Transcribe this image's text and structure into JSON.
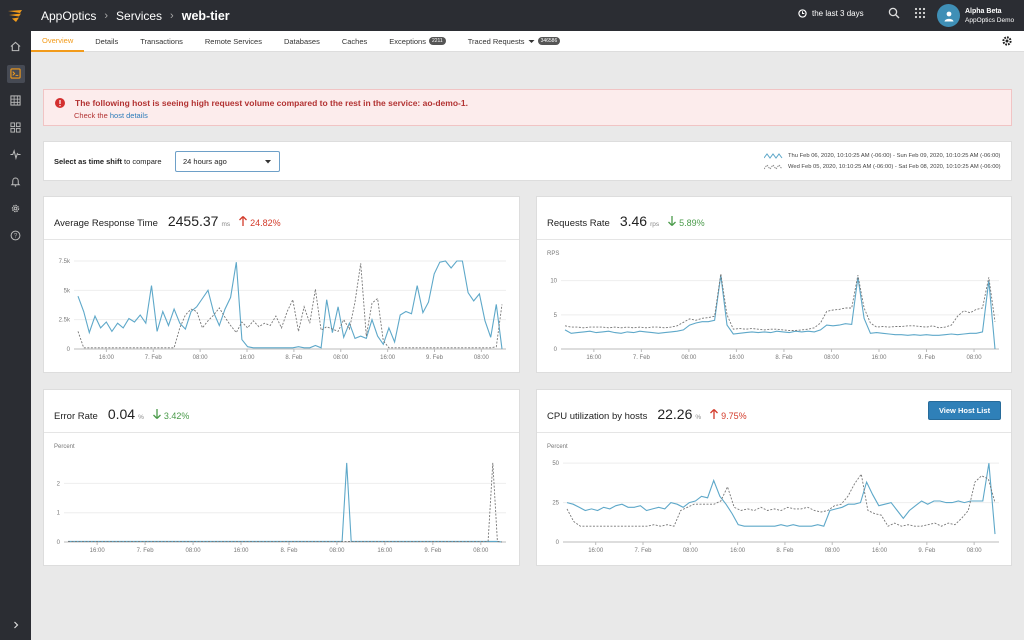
{
  "app": {
    "breadcrumb": [
      "AppOptics",
      "Services",
      "web-tier"
    ],
    "time_range": "the last 3 days",
    "user_name": "Alpha Beta",
    "org_name": "AppOptics Demo"
  },
  "tabs": [
    {
      "label": "Overview"
    },
    {
      "label": "Details"
    },
    {
      "label": "Transactions"
    },
    {
      "label": "Remote Services"
    },
    {
      "label": "Databases"
    },
    {
      "label": "Caches"
    },
    {
      "label": "Exceptions",
      "badge": "2211"
    },
    {
      "label": "Traced Requests",
      "badge": "346586"
    }
  ],
  "alert": {
    "title": "The following host is seeing high request volume compared to the rest in the service: ao-demo-1.",
    "sub_prefix": "Check the",
    "sub_link": "host details"
  },
  "compare": {
    "label_bold": "Select as time shift",
    "label_rest": "to compare",
    "selected": "24 hours ago",
    "legend_current": "Thu Feb 06, 2020, 10:10:25 AM (-06:00) - Sun Feb 09, 2020, 10:10:25 AM (-06:00)",
    "legend_previous": "Wed Feb 05, 2020, 10:10:25 AM (-06:00) - Sat Feb 08, 2020, 10:10:25 AM (-06:00)"
  },
  "colors": {
    "current_series": "#5ea8c9",
    "previous_series": "#777777",
    "accent": "#f29b1b",
    "up": "#d33b2b",
    "down": "#4b9b4b"
  },
  "x_ticks": [
    "16:00",
    "7. Feb",
    "08:00",
    "16:00",
    "8. Feb",
    "08:00",
    "16:00",
    "9. Feb",
    "08:00"
  ],
  "cards": {
    "avg_response": {
      "title": "Average Response Time",
      "value": "2455.37",
      "unit": "ms",
      "delta": "24.82%",
      "direction": "up"
    },
    "requests": {
      "title": "Requests Rate",
      "value": "3.46",
      "unit": "rps",
      "delta": "5.89%",
      "direction": "down"
    },
    "error_rate": {
      "title": "Error Rate",
      "value": "0.04",
      "unit": "%",
      "delta": "3.42%",
      "direction": "down"
    },
    "cpu": {
      "title": "CPU utilization by hosts",
      "value": "22.26",
      "unit": "%",
      "delta": "9.75%",
      "direction": "up",
      "button": "View Host List"
    }
  },
  "chart_data": [
    {
      "type": "line",
      "ylabel": "",
      "y_ticks": [
        "0",
        "2.5k",
        "5k",
        "7.5k"
      ],
      "ylim": [
        0,
        7500
      ],
      "x_tick_labels": [
        "16:00",
        "7. Feb",
        "08:00",
        "16:00",
        "8. Feb",
        "08:00",
        "16:00",
        "9. Feb",
        "08:00"
      ],
      "series": [
        {
          "values": [
            4500,
            3200,
            1400,
            2800,
            1800,
            2300,
            1500,
            2200,
            1800,
            2600,
            2300,
            2900,
            2200,
            5400,
            1500,
            3200,
            2000,
            3400,
            2200,
            1700,
            3200,
            3600,
            4300,
            5000,
            3100,
            2000,
            3400,
            4400,
            7400,
            800,
            200,
            100,
            100,
            100,
            100,
            100,
            100,
            100,
            100,
            200,
            100,
            100,
            300,
            100,
            4200,
            1400,
            3600,
            1000,
            2200,
            900,
            1100,
            900,
            2500,
            1100,
            400,
            1800,
            600,
            2900,
            3200,
            3000,
            5400,
            3100,
            4000,
            6400,
            7400,
            7600,
            6900,
            7900,
            7600,
            4800,
            4100,
            4700,
            2400,
            1000,
            3800,
            0
          ]
        },
        {
          "values": [
            1500,
            100,
            100,
            100,
            100,
            100,
            100,
            100,
            100,
            100,
            100,
            100,
            100,
            100,
            100,
            100,
            100,
            100,
            1800,
            2900,
            3400,
            3200,
            1800,
            2400,
            2900,
            3500,
            2700,
            2000,
            1400,
            2300,
            1800,
            2400,
            1900,
            2200,
            2000,
            2800,
            1800,
            3200,
            4200,
            1500,
            3600,
            2200,
            5100,
            1600,
            1900,
            1700,
            1500,
            2500,
            1700,
            4000,
            7300,
            1100,
            3900,
            4300,
            700,
            100,
            100,
            100,
            100,
            100,
            100,
            100,
            100,
            100,
            100,
            100,
            100,
            100,
            100,
            100,
            100,
            100,
            100,
            100,
            200,
            3800
          ]
        }
      ]
    },
    {
      "type": "line",
      "ylabel": "RPS",
      "y_ticks": [
        "0",
        "5",
        "10"
      ],
      "ylim": [
        0,
        12
      ],
      "x_tick_labels": [
        "16:00",
        "7. Feb",
        "08:00",
        "16:00",
        "8. Feb",
        "08:00",
        "16:00",
        "9. Feb",
        "08:00"
      ],
      "series": [
        {
          "values": [
            2.8,
            2.3,
            2.4,
            2.5,
            2.6,
            2.4,
            2.5,
            2.6,
            2.4,
            2.3,
            2.5,
            2.4,
            2.6,
            2.5,
            2.4,
            2.3,
            2.4,
            2.5,
            2.6,
            2.8,
            3.5,
            3.8,
            4.0,
            4.0,
            4.2,
            10.8,
            3.5,
            2.2,
            2.3,
            2.4,
            2.5,
            2.4,
            2.5,
            2.4,
            2.6,
            2.5,
            2.4,
            2.6,
            2.5,
            2.6,
            2.5,
            2.8,
            3.5,
            3.4,
            3.5,
            3.7,
            3.6,
            10.5,
            4.5,
            2.3,
            2.4,
            2.3,
            2.2,
            2.1,
            2.1,
            2.0,
            2.1,
            2.0,
            2.1,
            2.0,
            2.0,
            2.1,
            2.2,
            2.1,
            2.2,
            2.3,
            2.3,
            2.5,
            10.0,
            0
          ]
        },
        {
          "values": [
            3.4,
            3.2,
            3.2,
            3.1,
            3.2,
            3.2,
            3.2,
            3.1,
            3.2,
            3.1,
            3.2,
            3.1,
            3.2,
            3.1,
            3.2,
            3.2,
            3.1,
            3.2,
            3.4,
            3.9,
            4.4,
            4.2,
            4.5,
            4.6,
            4.8,
            11.0,
            5.0,
            2.9,
            3.0,
            2.9,
            3.0,
            2.9,
            2.8,
            2.9,
            2.9,
            2.8,
            2.7,
            2.7,
            2.8,
            2.9,
            3.1,
            3.8,
            5.5,
            5.7,
            5.8,
            6.0,
            6.0,
            10.8,
            6.0,
            3.8,
            3.2,
            3.3,
            3.2,
            3.3,
            3.3,
            3.4,
            3.4,
            3.3,
            3.2,
            3.4,
            3.1,
            3.2,
            3.5,
            4.8,
            5.6,
            5.3,
            5.8,
            6.0,
            10.5,
            4.0
          ]
        }
      ]
    },
    {
      "type": "line",
      "ylabel": "Percent",
      "y_ticks": [
        "0",
        "1",
        "2"
      ],
      "ylim": [
        0,
        2.8
      ],
      "x_tick_labels": [
        "16:00",
        "7. Feb",
        "08:00",
        "16:00",
        "8. Feb",
        "08:00",
        "16:00",
        "9. Feb",
        "08:00"
      ],
      "series": [
        {
          "values": [
            0.02,
            0.02,
            0.02,
            0.02,
            0.02,
            0.02,
            0.02,
            0.02,
            0.02,
            0.02,
            0.02,
            0.02,
            0.02,
            0.02,
            0.02,
            0.02,
            0.02,
            0.02,
            0.02,
            0.02,
            0.02,
            0.02,
            0.02,
            0.02,
            0.02,
            0.02,
            0.02,
            0.02,
            0.02,
            0.02,
            0.02,
            0.02,
            0.02,
            0.02,
            0.02,
            0.02,
            0.02,
            0.02,
            0.02,
            0.02,
            0.02,
            0.02,
            0.02,
            0.02,
            0.02,
            0.02,
            0.02,
            0.02,
            0.02,
            0.02,
            0.02,
            0.02,
            0.02,
            0.02,
            0.02,
            0.02,
            0.02,
            0.02,
            0.02,
            0.02,
            0.02,
            2.7,
            0.02,
            0.02,
            0.02,
            0.02,
            0.02,
            0.02,
            0.02,
            0.02,
            0.02,
            0.02,
            0.02,
            0.02,
            0.02,
            0.02,
            0.02,
            0.02,
            0.02,
            0.02,
            0.02,
            0.02,
            0.02,
            0.02,
            0.02,
            0.02,
            0.02,
            0.02,
            0.02,
            0.02,
            0.02,
            0.02,
            0.02,
            0.02,
            0.02,
            0.0
          ]
        },
        {
          "values": [
            0.02,
            0.02,
            0.02,
            0.02,
            0.02,
            0.02,
            0.02,
            0.02,
            0.02,
            0.02,
            0.02,
            0.02,
            0.02,
            0.02,
            0.02,
            0.02,
            0.02,
            0.02,
            0.02,
            0.02,
            0.02,
            0.02,
            0.02,
            0.02,
            0.02,
            0.02,
            0.02,
            0.02,
            0.02,
            0.02,
            0.02,
            0.02,
            0.02,
            0.02,
            0.02,
            0.02,
            0.02,
            0.02,
            0.02,
            0.02,
            0.02,
            0.02,
            0.02,
            0.02,
            0.02,
            0.02,
            0.02,
            0.02,
            0.02,
            0.02,
            0.02,
            0.02,
            0.02,
            0.02,
            0.02,
            0.02,
            0.02,
            0.02,
            0.02,
            0.02,
            0.02,
            0.02,
            0.02,
            0.02,
            0.02,
            0.02,
            0.02,
            0.02,
            0.02,
            0.02,
            0.02,
            0.02,
            0.02,
            0.02,
            0.02,
            0.02,
            0.02,
            0.02,
            0.02,
            0.02,
            0.02,
            0.02,
            0.02,
            0.02,
            0.02,
            0.02,
            0.02,
            0.02,
            0.02,
            0.02,
            0.02,
            0.02,
            2.7,
            0.02,
            0.0
          ]
        }
      ]
    },
    {
      "type": "line",
      "ylabel": "Percent",
      "y_ticks": [
        "0",
        "25",
        "50"
      ],
      "ylim": [
        0,
        52
      ],
      "x_tick_labels": [
        "16:00",
        "7. Feb",
        "08:00",
        "16:00",
        "8. Feb",
        "08:00",
        "16:00",
        "9. Feb",
        "08:00"
      ],
      "series": [
        {
          "values": [
            25,
            24,
            22,
            20,
            21,
            20,
            22,
            21,
            23,
            24,
            22,
            22,
            23,
            20,
            21,
            22,
            21,
            25,
            24,
            22,
            25,
            26,
            29,
            28,
            39,
            29,
            24,
            18,
            11,
            10,
            10,
            10,
            10,
            10,
            10,
            11,
            10,
            11,
            10,
            10,
            10,
            11,
            10,
            20,
            21,
            22,
            24,
            24,
            25,
            38,
            30,
            23,
            24,
            25,
            20,
            15,
            20,
            23,
            26,
            24,
            26,
            26,
            25,
            25,
            26,
            25,
            26,
            26,
            26,
            50,
            5
          ]
        },
        {
          "values": [
            21,
            13,
            10,
            10,
            10,
            10,
            10,
            10,
            10,
            10,
            10,
            10,
            10,
            11,
            10,
            11,
            10,
            20,
            22,
            24,
            24,
            24,
            24,
            26,
            35,
            22,
            20,
            21,
            20,
            22,
            20,
            21,
            20,
            22,
            21,
            21,
            22,
            20,
            19,
            20,
            23,
            24,
            29,
            37,
            43,
            20,
            18,
            17,
            10,
            12,
            10,
            11,
            10,
            10,
            11,
            12,
            10,
            12,
            11,
            15,
            20,
            38,
            42,
            40,
            25
          ]
        }
      ]
    }
  ]
}
